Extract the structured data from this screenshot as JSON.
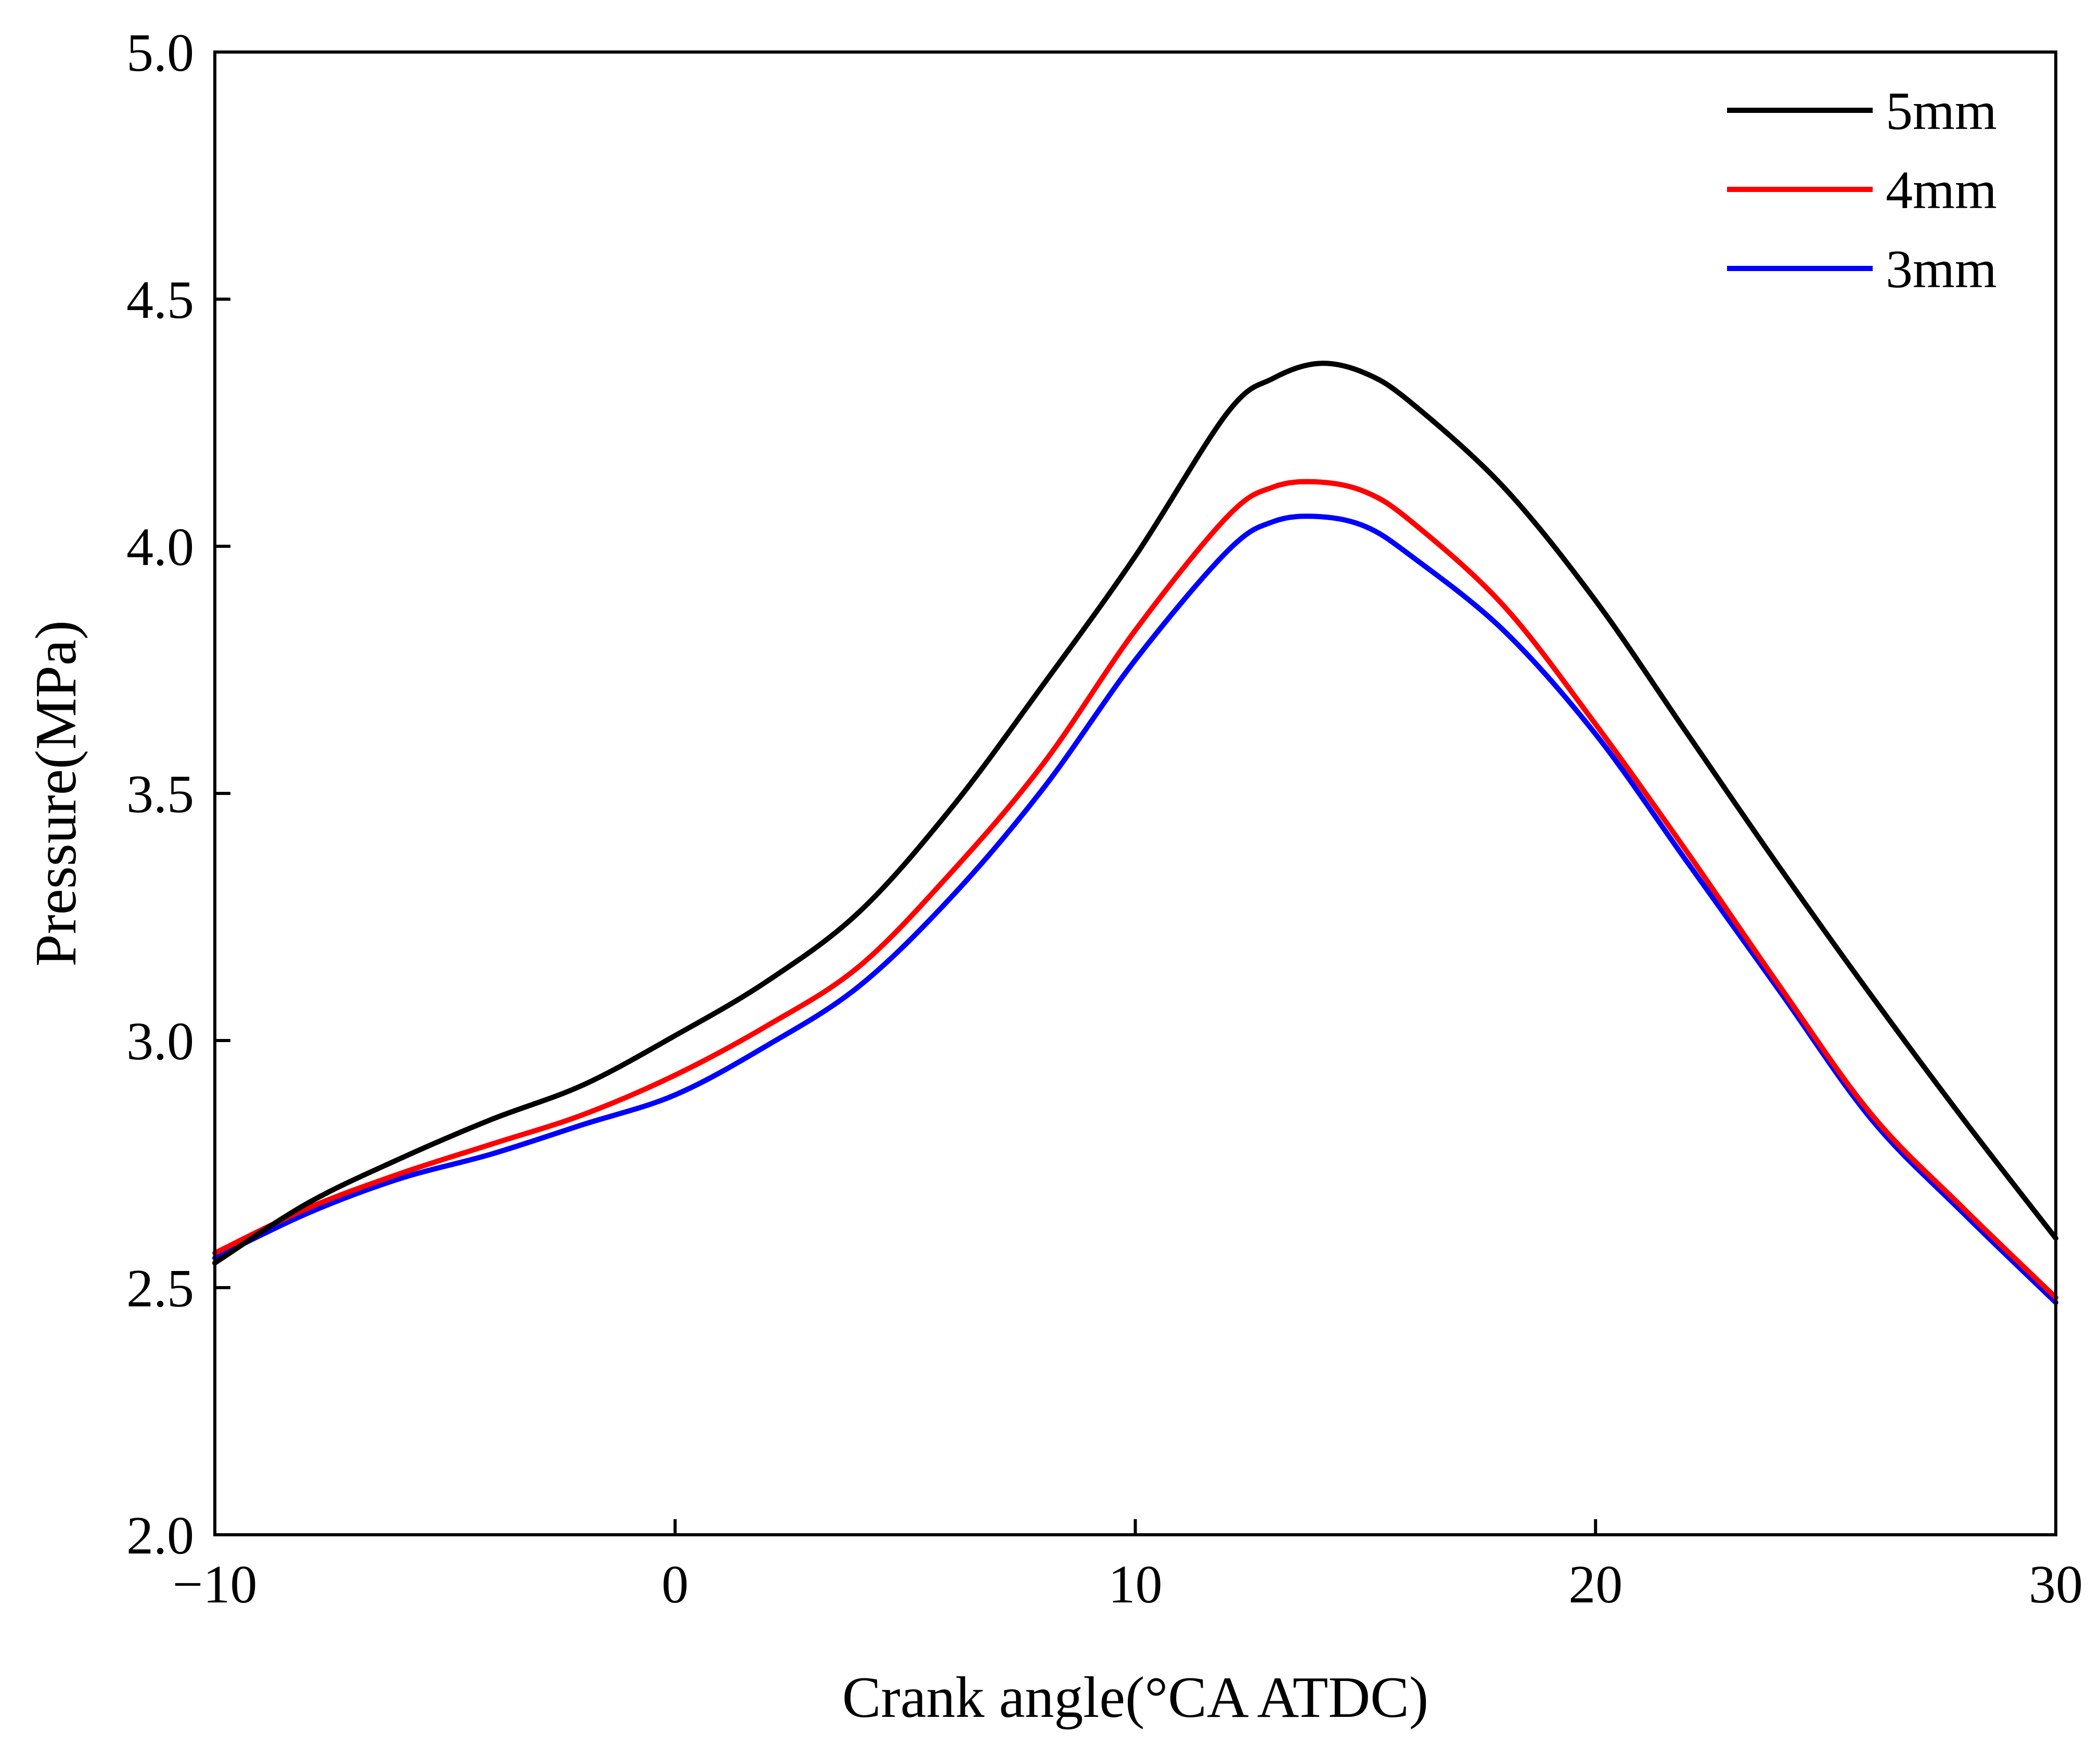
{
  "colors": {
    "series_5mm": "#000000",
    "series_4mm": "#ff0000",
    "series_3mm": "#0000ff",
    "axis": "#000000",
    "background": "#ffffff"
  },
  "chart_data": {
    "type": "line",
    "title": "",
    "xlabel": "Crank angle(°CA ATDC)",
    "ylabel": "Pressure(MPa)",
    "xlim": [
      -10,
      30
    ],
    "ylim": [
      2.0,
      5.0
    ],
    "xticks": [
      -10,
      0,
      10,
      20,
      30
    ],
    "xtick_labels": [
      "−10",
      "0",
      "10",
      "20",
      "30"
    ],
    "yticks": [
      2.0,
      2.5,
      3.0,
      3.5,
      4.0,
      4.5,
      5.0
    ],
    "ytick_labels": [
      "2.0",
      "2.5",
      "3.0",
      "3.5",
      "4.0",
      "4.5",
      "5.0"
    ],
    "grid": false,
    "legend_position": "top-right",
    "series": [
      {
        "name": "5mm",
        "color": "#000000",
        "points": [
          [
            -10,
            2.55
          ],
          [
            -8,
            2.67
          ],
          [
            -6,
            2.76
          ],
          [
            -4,
            2.84
          ],
          [
            -2,
            2.91
          ],
          [
            0,
            3.01
          ],
          [
            2,
            3.12
          ],
          [
            4,
            3.26
          ],
          [
            6,
            3.47
          ],
          [
            8,
            3.72
          ],
          [
            10,
            3.98
          ],
          [
            12,
            4.27
          ],
          [
            13,
            4.34
          ],
          [
            14,
            4.37
          ],
          [
            15,
            4.35
          ],
          [
            16,
            4.29
          ],
          [
            18,
            4.12
          ],
          [
            20,
            3.89
          ],
          [
            22,
            3.62
          ],
          [
            24,
            3.35
          ],
          [
            26,
            3.09
          ],
          [
            28,
            2.84
          ],
          [
            30,
            2.6
          ]
        ]
      },
      {
        "name": "4mm",
        "color": "#ff0000",
        "points": [
          [
            -10,
            2.57
          ],
          [
            -8,
            2.66
          ],
          [
            -6,
            2.73
          ],
          [
            -4,
            2.79
          ],
          [
            -2,
            2.85
          ],
          [
            0,
            2.93
          ],
          [
            2,
            3.03
          ],
          [
            4,
            3.15
          ],
          [
            6,
            3.34
          ],
          [
            8,
            3.56
          ],
          [
            10,
            3.83
          ],
          [
            12,
            4.06
          ],
          [
            13,
            4.12
          ],
          [
            14,
            4.13
          ],
          [
            15,
            4.11
          ],
          [
            16,
            4.05
          ],
          [
            18,
            3.88
          ],
          [
            20,
            3.64
          ],
          [
            22,
            3.38
          ],
          [
            24,
            3.11
          ],
          [
            26,
            2.85
          ],
          [
            28,
            2.66
          ],
          [
            30,
            2.48
          ]
        ]
      },
      {
        "name": "3mm",
        "color": "#0000ff",
        "points": [
          [
            -10,
            2.56
          ],
          [
            -8,
            2.65
          ],
          [
            -6,
            2.72
          ],
          [
            -4,
            2.77
          ],
          [
            -2,
            2.83
          ],
          [
            0,
            2.89
          ],
          [
            2,
            2.99
          ],
          [
            4,
            3.11
          ],
          [
            6,
            3.29
          ],
          [
            8,
            3.51
          ],
          [
            10,
            3.77
          ],
          [
            12,
            3.99
          ],
          [
            13,
            4.05
          ],
          [
            14,
            4.06
          ],
          [
            15,
            4.04
          ],
          [
            16,
            3.98
          ],
          [
            18,
            3.83
          ],
          [
            20,
            3.62
          ],
          [
            22,
            3.36
          ],
          [
            24,
            3.1
          ],
          [
            26,
            2.84
          ],
          [
            28,
            2.65
          ],
          [
            30,
            2.47
          ]
        ]
      }
    ]
  }
}
